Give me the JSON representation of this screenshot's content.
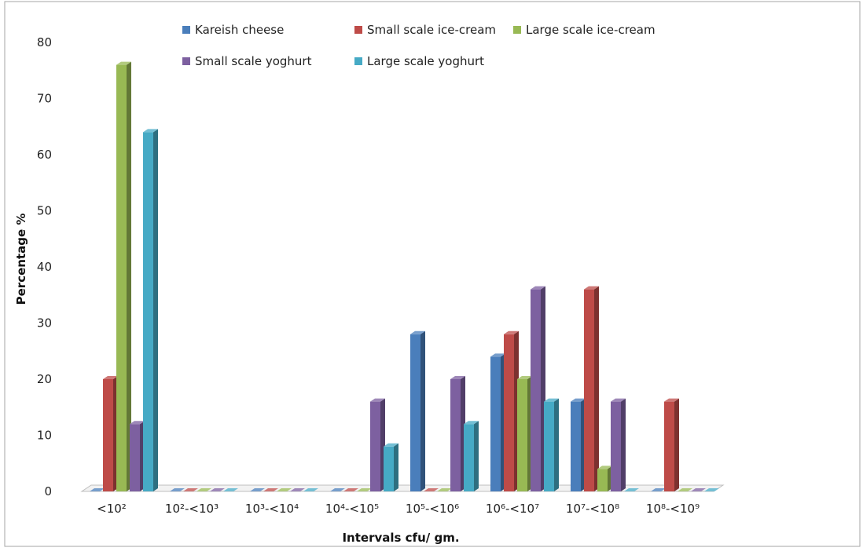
{
  "chart_data": {
    "type": "bar",
    "title": "",
    "xlabel": "Intervals cfu/ gm.",
    "ylabel": "Percentage %",
    "ylim": [
      0,
      80
    ],
    "yticks": [
      "0",
      "10",
      "20",
      "30",
      "40",
      "50",
      "60",
      "70",
      "80"
    ],
    "grid": false,
    "legend_position": "top",
    "categories": [
      "<10²",
      "10²-<10³",
      "10³-<10⁴",
      "10⁴-<10⁵",
      "10⁵-<10⁶",
      "10⁶-<10⁷",
      "10⁷-<10⁸",
      "10⁸-<10⁹"
    ],
    "series": [
      {
        "name": "Kareish cheese",
        "color": "#4a7ebb",
        "values": [
          0,
          0,
          0,
          0,
          28,
          24,
          16,
          0
        ]
      },
      {
        "name": "Small scale ice-cream",
        "color": "#be4b48",
        "values": [
          20,
          0,
          0,
          0,
          0,
          28,
          36,
          16
        ]
      },
      {
        "name": "Large scale ice-cream",
        "color": "#98b954",
        "values": [
          76,
          0,
          0,
          0,
          0,
          20,
          4,
          0
        ]
      },
      {
        "name": "Small scale yoghurt",
        "color": "#7d60a0",
        "values": [
          12,
          0,
          0,
          16,
          20,
          36,
          16,
          0
        ]
      },
      {
        "name": "Large scale yoghurt",
        "color": "#46aac5",
        "values": [
          64,
          0,
          0,
          8,
          12,
          16,
          0,
          0
        ]
      }
    ]
  }
}
